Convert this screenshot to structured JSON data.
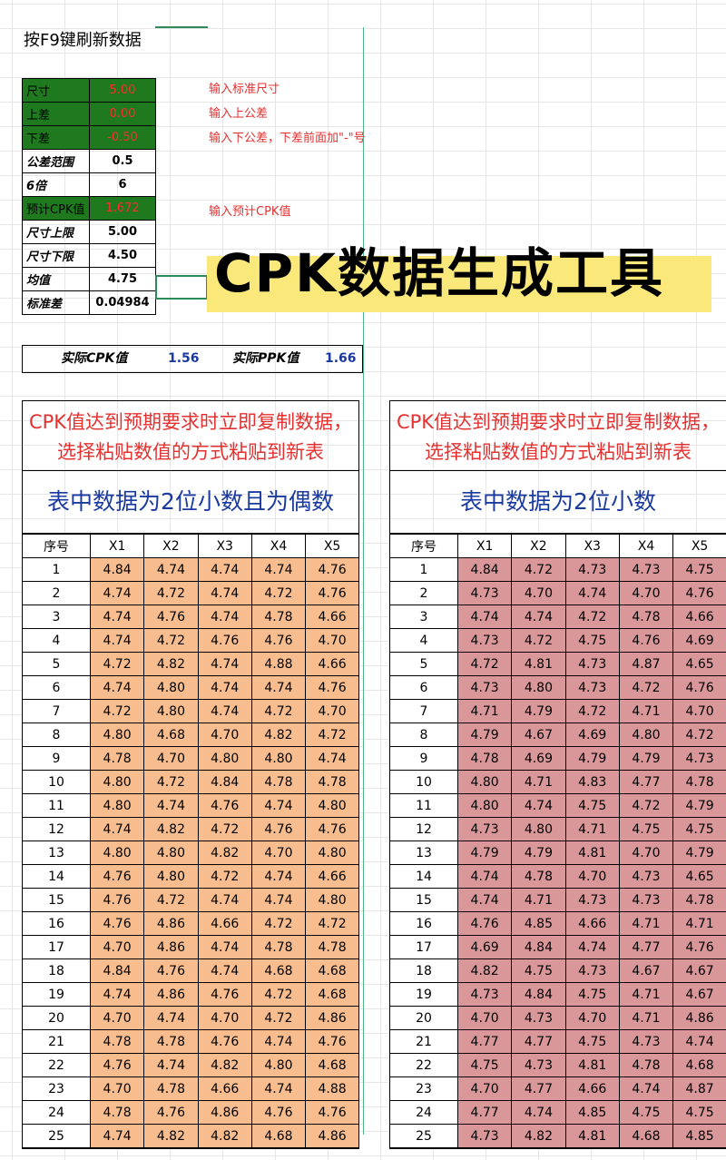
{
  "sheet": {
    "f9_note": "按F9键刷新数据",
    "params": [
      {
        "label": "尺寸",
        "value": "5.00",
        "hint": "输入标准尺寸",
        "input": true
      },
      {
        "label": "上差",
        "value": "0.00",
        "hint": "输入上公差",
        "input": true
      },
      {
        "label": "下差",
        "value": "-0.50",
        "hint": "输入下公差，下差前面加\"-\"号",
        "input": true
      },
      {
        "label": "公差范围",
        "value": "0.5",
        "hint": "",
        "input": false
      },
      {
        "label": "6倍",
        "value": "6",
        "hint": "",
        "input": false
      },
      {
        "label": "预计CPK值",
        "value": "1.672",
        "hint": "输入预计CPK值",
        "input": true
      },
      {
        "label": "尺寸上限",
        "value": "5.00",
        "hint": "",
        "input": false
      },
      {
        "label": "尺寸下限",
        "value": "4.50",
        "hint": "",
        "input": false
      },
      {
        "label": "均值",
        "value": "4.75",
        "hint": "",
        "input": false
      },
      {
        "label": "标准差",
        "value": "0.04984",
        "hint": "",
        "input": false
      }
    ],
    "banner": "CPK数据生成工具",
    "actual": {
      "cpk_label": "实际CPK值",
      "cpk_value": "1.56",
      "ppk_label": "实际PPK值",
      "ppk_value": "1.66"
    },
    "columns": [
      "序号",
      "X1",
      "X2",
      "X3",
      "X4",
      "X5"
    ],
    "left_table": {
      "instruction": "CPK值达到预期要求时立即复制数据，选择粘贴数值的方式粘贴到新表",
      "subtitle": "表中数据为2位小数且为偶数",
      "rows": [
        [
          "1",
          "4.84",
          "4.74",
          "4.74",
          "4.74",
          "4.76"
        ],
        [
          "2",
          "4.74",
          "4.72",
          "4.74",
          "4.72",
          "4.76"
        ],
        [
          "3",
          "4.74",
          "4.76",
          "4.74",
          "4.78",
          "4.66"
        ],
        [
          "4",
          "4.74",
          "4.72",
          "4.76",
          "4.76",
          "4.70"
        ],
        [
          "5",
          "4.72",
          "4.82",
          "4.74",
          "4.88",
          "4.66"
        ],
        [
          "6",
          "4.74",
          "4.80",
          "4.74",
          "4.74",
          "4.76"
        ],
        [
          "7",
          "4.72",
          "4.80",
          "4.74",
          "4.72",
          "4.70"
        ],
        [
          "8",
          "4.80",
          "4.68",
          "4.70",
          "4.82",
          "4.72"
        ],
        [
          "9",
          "4.78",
          "4.70",
          "4.80",
          "4.80",
          "4.74"
        ],
        [
          "10",
          "4.80",
          "4.72",
          "4.84",
          "4.78",
          "4.78"
        ],
        [
          "11",
          "4.80",
          "4.74",
          "4.76",
          "4.74",
          "4.80"
        ],
        [
          "12",
          "4.74",
          "4.82",
          "4.72",
          "4.76",
          "4.76"
        ],
        [
          "13",
          "4.80",
          "4.80",
          "4.82",
          "4.70",
          "4.80"
        ],
        [
          "14",
          "4.76",
          "4.80",
          "4.72",
          "4.74",
          "4.66"
        ],
        [
          "15",
          "4.76",
          "4.72",
          "4.74",
          "4.74",
          "4.80"
        ],
        [
          "16",
          "4.76",
          "4.86",
          "4.66",
          "4.72",
          "4.72"
        ],
        [
          "17",
          "4.70",
          "4.86",
          "4.74",
          "4.78",
          "4.78"
        ],
        [
          "18",
          "4.84",
          "4.76",
          "4.74",
          "4.68",
          "4.68"
        ],
        [
          "19",
          "4.74",
          "4.86",
          "4.76",
          "4.72",
          "4.68"
        ],
        [
          "20",
          "4.70",
          "4.74",
          "4.70",
          "4.72",
          "4.86"
        ],
        [
          "21",
          "4.78",
          "4.78",
          "4.76",
          "4.74",
          "4.76"
        ],
        [
          "22",
          "4.76",
          "4.74",
          "4.82",
          "4.80",
          "4.68"
        ],
        [
          "23",
          "4.70",
          "4.78",
          "4.66",
          "4.74",
          "4.88"
        ],
        [
          "24",
          "4.78",
          "4.76",
          "4.86",
          "4.76",
          "4.76"
        ],
        [
          "25",
          "4.74",
          "4.82",
          "4.82",
          "4.68",
          "4.86"
        ]
      ]
    },
    "right_table": {
      "instruction": "CPK值达到预期要求时立即复制数据，选择粘贴数值的方式粘贴到新表",
      "subtitle": "表中数据为2位小数",
      "rows": [
        [
          "1",
          "4.84",
          "4.72",
          "4.73",
          "4.73",
          "4.75"
        ],
        [
          "2",
          "4.73",
          "4.70",
          "4.74",
          "4.70",
          "4.76"
        ],
        [
          "3",
          "4.74",
          "4.74",
          "4.72",
          "4.78",
          "4.66"
        ],
        [
          "4",
          "4.73",
          "4.72",
          "4.75",
          "4.76",
          "4.69"
        ],
        [
          "5",
          "4.72",
          "4.81",
          "4.73",
          "4.87",
          "4.65"
        ],
        [
          "6",
          "4.73",
          "4.80",
          "4.73",
          "4.72",
          "4.76"
        ],
        [
          "7",
          "4.71",
          "4.79",
          "4.72",
          "4.71",
          "4.70"
        ],
        [
          "8",
          "4.79",
          "4.67",
          "4.69",
          "4.80",
          "4.72"
        ],
        [
          "9",
          "4.78",
          "4.69",
          "4.79",
          "4.79",
          "4.73"
        ],
        [
          "10",
          "4.80",
          "4.71",
          "4.83",
          "4.77",
          "4.78"
        ],
        [
          "11",
          "4.80",
          "4.74",
          "4.75",
          "4.72",
          "4.79"
        ],
        [
          "12",
          "4.73",
          "4.80",
          "4.71",
          "4.75",
          "4.75"
        ],
        [
          "13",
          "4.79",
          "4.79",
          "4.81",
          "4.70",
          "4.79"
        ],
        [
          "14",
          "4.74",
          "4.78",
          "4.70",
          "4.73",
          "4.65"
        ],
        [
          "15",
          "4.74",
          "4.71",
          "4.73",
          "4.73",
          "4.78"
        ],
        [
          "16",
          "4.76",
          "4.85",
          "4.66",
          "4.71",
          "4.71"
        ],
        [
          "17",
          "4.69",
          "4.84",
          "4.74",
          "4.77",
          "4.76"
        ],
        [
          "18",
          "4.82",
          "4.75",
          "4.73",
          "4.67",
          "4.67"
        ],
        [
          "19",
          "4.73",
          "4.84",
          "4.75",
          "4.71",
          "4.67"
        ],
        [
          "20",
          "4.70",
          "4.73",
          "4.70",
          "4.71",
          "4.86"
        ],
        [
          "21",
          "4.77",
          "4.77",
          "4.75",
          "4.73",
          "4.74"
        ],
        [
          "22",
          "4.75",
          "4.73",
          "4.81",
          "4.78",
          "4.68"
        ],
        [
          "23",
          "4.70",
          "4.77",
          "4.66",
          "4.74",
          "4.87"
        ],
        [
          "24",
          "4.77",
          "4.74",
          "4.85",
          "4.75",
          "4.75"
        ],
        [
          "25",
          "4.73",
          "4.82",
          "4.81",
          "4.68",
          "4.85"
        ]
      ]
    }
  }
}
